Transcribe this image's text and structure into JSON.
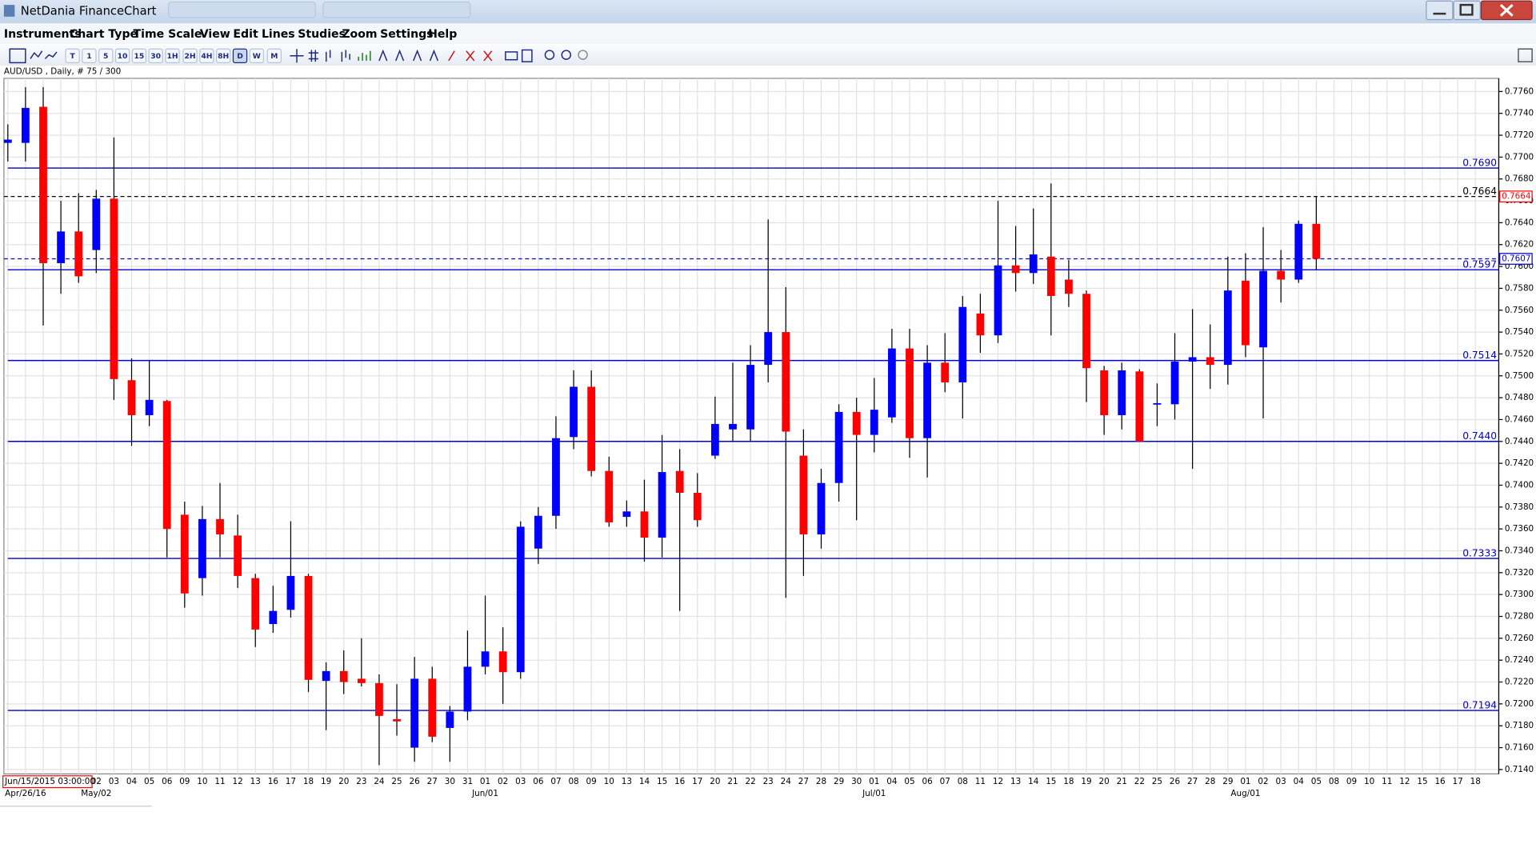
{
  "window": {
    "title": "NetDania FinanceChart"
  },
  "menu": [
    "Instruments",
    "Chart Type",
    "Time Scale",
    "View",
    "Edit",
    "Lines",
    "Studies",
    "Zoom",
    "Settings",
    "Help"
  ],
  "toolbar": [
    "T",
    "1",
    "5",
    "10",
    "15",
    "30",
    "1H",
    "2H",
    "4H",
    "8H",
    "D",
    "W",
    "M"
  ],
  "chart_data": {
    "type": "candlestick",
    "title": "AUD/USD , Daily, # 75 / 300",
    "cursor_label": "Jun/15/2015 03:00:00",
    "up_color": "#0000ff",
    "down_color": "#ff0000",
    "grid": true,
    "categories": [
      null,
      null,
      null,
      null,
      null,
      "02",
      "03",
      "04",
      "05",
      "06",
      "09",
      "10",
      "11",
      "12",
      "13",
      "16",
      "17",
      "18",
      "19",
      "20",
      "23",
      "24",
      "25",
      "26",
      "27",
      "30",
      "31",
      "01",
      "02",
      "03",
      "06",
      "07",
      "08",
      "09",
      "10",
      "13",
      "14",
      "15",
      "16",
      "17",
      "20",
      "21",
      "22",
      "23",
      "24",
      "27",
      "28",
      "29",
      "30",
      "01",
      "04",
      "05",
      "06",
      "07",
      "08",
      "11",
      "12",
      "13",
      "14",
      "15",
      "18",
      "19",
      "20",
      "21",
      "22",
      "25",
      "26",
      "27",
      "28",
      "29",
      "01",
      "02",
      "03",
      "04",
      "05",
      "08",
      "09",
      "10",
      "11",
      "12",
      "15",
      "16",
      "17",
      "18"
    ],
    "period_labels": [
      null,
      "Apr/26/16",
      null,
      null,
      null,
      "May/02",
      null,
      null,
      null,
      null,
      null,
      null,
      null,
      null,
      null,
      null,
      null,
      null,
      null,
      null,
      null,
      null,
      null,
      null,
      null,
      null,
      null,
      "Jun/01",
      null,
      null,
      null,
      null,
      null,
      null,
      null,
      null,
      null,
      null,
      null,
      null,
      null,
      null,
      null,
      null,
      null,
      null,
      null,
      null,
      null,
      "Jul/01",
      null,
      null,
      null,
      null,
      null,
      null,
      null,
      null,
      null,
      null,
      null,
      null,
      null,
      null,
      null,
      null,
      null,
      null,
      null,
      null,
      "Aug/01",
      null,
      null,
      null,
      null,
      null,
      null,
      null,
      null,
      null,
      null,
      null,
      null,
      null
    ],
    "open": [
      0.7713,
      0.7713,
      0.7746,
      0.7603,
      0.7632,
      0.7615,
      0.7662,
      0.7496,
      0.7464,
      0.7477,
      0.7373,
      0.7315,
      0.7369,
      0.7354,
      0.7315,
      0.7273,
      0.7286,
      0.7317,
      0.7221,
      0.723,
      0.7223,
      0.7219,
      0.7186,
      0.716,
      0.7223,
      0.7178,
      0.7193,
      0.7234,
      0.7248,
      0.7229,
      0.7342,
      0.7372,
      0.7444,
      0.749,
      0.7413,
      0.7371,
      0.7376,
      0.7352,
      0.7413,
      0.7393,
      0.7427,
      0.7451,
      0.7451,
      0.751,
      0.754,
      0.7427,
      0.7355,
      0.7402,
      0.7467,
      0.7446,
      0.7462,
      0.7525,
      0.7443,
      0.7512,
      0.7494,
      0.7557,
      0.7537,
      0.7601,
      0.7594,
      0.7609,
      0.7588,
      0.7575,
      0.7505,
      0.7464,
      0.7504,
      0.7474,
      0.7474,
      0.7513,
      0.7517,
      0.751,
      0.7587,
      0.7526,
      0.7596,
      0.7588,
      0.7639,
      null,
      null,
      null,
      null,
      null,
      null,
      null,
      null,
      null
    ],
    "high": [
      0.773,
      0.7764,
      0.7764,
      0.766,
      0.7667,
      0.767,
      0.7718,
      0.7516,
      0.7514,
      0.7478,
      0.7385,
      0.7381,
      0.7402,
      0.7373,
      0.7319,
      0.7308,
      0.7367,
      0.7319,
      0.7238,
      0.7249,
      0.726,
      0.7227,
      0.7218,
      0.7243,
      0.7234,
      0.7198,
      0.7267,
      0.7299,
      0.727,
      0.7367,
      0.738,
      0.7463,
      0.7505,
      0.7505,
      0.7426,
      0.7386,
      0.7405,
      0.7446,
      0.7433,
      0.7411,
      0.7481,
      0.7512,
      0.7528,
      0.7643,
      0.7581,
      0.7451,
      0.7415,
      0.7474,
      0.748,
      0.7498,
      0.7543,
      0.7543,
      0.7528,
      0.7539,
      0.7573,
      0.7575,
      0.766,
      0.7637,
      0.7653,
      0.7676,
      0.7606,
      0.7578,
      0.7509,
      0.7512,
      0.7506,
      0.7493,
      0.7539,
      0.7561,
      0.7547,
      0.7609,
      0.7612,
      0.7636,
      0.7615,
      0.7642,
      0.7664,
      null,
      null,
      null,
      null,
      null,
      null,
      null,
      null,
      null
    ],
    "low": [
      0.7696,
      0.7696,
      0.7546,
      0.7575,
      0.7585,
      0.7594,
      0.7478,
      0.7436,
      0.7454,
      0.7334,
      0.7288,
      0.7299,
      0.7334,
      0.7306,
      0.7252,
      0.7265,
      0.7279,
      0.7211,
      0.7176,
      0.7209,
      0.7216,
      0.7144,
      0.7171,
      0.7147,
      0.7165,
      0.7147,
      0.7185,
      0.7227,
      0.72,
      0.7223,
      0.7328,
      0.736,
      0.7433,
      0.7408,
      0.7362,
      0.7362,
      0.733,
      0.7334,
      0.7285,
      0.7362,
      0.7424,
      0.744,
      0.744,
      0.7494,
      0.7297,
      0.7317,
      0.7342,
      0.7385,
      0.7368,
      0.743,
      0.7457,
      0.7425,
      0.7407,
      0.7485,
      0.7461,
      0.7521,
      0.753,
      0.7577,
      0.7584,
      0.7537,
      0.7563,
      0.7476,
      0.7446,
      0.7451,
      0.744,
      0.7454,
      0.746,
      0.7415,
      0.7488,
      0.7492,
      0.7517,
      0.7461,
      0.7567,
      0.7585,
      0.7597,
      null,
      null,
      null,
      null,
      null,
      null,
      null,
      null,
      null
    ],
    "close": [
      0.7716,
      0.7745,
      0.7603,
      0.7632,
      0.7591,
      0.7662,
      0.7497,
      0.7464,
      0.7478,
      0.736,
      0.7301,
      0.7369,
      0.7355,
      0.7317,
      0.7268,
      0.7285,
      0.7317,
      0.7222,
      0.723,
      0.722,
      0.7219,
      0.7189,
      0.7184,
      0.7223,
      0.717,
      0.7193,
      0.7234,
      0.7248,
      0.7229,
      0.7362,
      0.7372,
      0.7443,
      0.749,
      0.7413,
      0.7366,
      0.7376,
      0.7352,
      0.7412,
      0.7393,
      0.7368,
      0.7456,
      0.7456,
      0.751,
      0.754,
      0.7449,
      0.7355,
      0.7402,
      0.7467,
      0.7446,
      0.7469,
      0.7525,
      0.7443,
      0.7512,
      0.7494,
      0.7563,
      0.7537,
      0.7601,
      0.7594,
      0.7611,
      0.7573,
      0.7575,
      0.7507,
      0.7464,
      0.7505,
      0.744,
      0.7475,
      0.7513,
      0.7517,
      0.751,
      0.7578,
      0.7528,
      0.7596,
      0.7588,
      0.7639,
      0.7607,
      null,
      null,
      null,
      null,
      null,
      null,
      null,
      null,
      null
    ],
    "ylim": [
      0.7136,
      0.7772
    ],
    "yticks": [
      {
        "value": 0.714,
        "label": "0.7140"
      },
      {
        "value": 0.716,
        "label": "0.7160"
      },
      {
        "value": 0.718,
        "label": "0.7180"
      },
      {
        "value": 0.72,
        "label": "0.7200"
      },
      {
        "value": 0.722,
        "label": "0.7220"
      },
      {
        "value": 0.724,
        "label": "0.7240"
      },
      {
        "value": 0.726,
        "label": "0.7260"
      },
      {
        "value": 0.728,
        "label": "0.7280"
      },
      {
        "value": 0.73,
        "label": "0.7300"
      },
      {
        "value": 0.732,
        "label": "0.7320"
      },
      {
        "value": 0.734,
        "label": "0.7340"
      },
      {
        "value": 0.736,
        "label": "0.7360"
      },
      {
        "value": 0.738,
        "label": "0.7380"
      },
      {
        "value": 0.74,
        "label": "0.7400"
      },
      {
        "value": 0.742,
        "label": "0.7420"
      },
      {
        "value": 0.744,
        "label": "0.7440"
      },
      {
        "value": 0.746,
        "label": "0.7460"
      },
      {
        "value": 0.748,
        "label": "0.7480"
      },
      {
        "value": 0.75,
        "label": "0.7500"
      },
      {
        "value": 0.752,
        "label": "0.7520"
      },
      {
        "value": 0.754,
        "label": "0.7540"
      },
      {
        "value": 0.756,
        "label": "0.7560"
      },
      {
        "value": 0.758,
        "label": "0.7580"
      },
      {
        "value": 0.76,
        "label": "0.7600"
      },
      {
        "value": 0.762,
        "label": "0.7620"
      },
      {
        "value": 0.764,
        "label": "0.7640"
      },
      {
        "value": 0.766,
        "label": "0.7660"
      },
      {
        "value": 0.768,
        "label": "0.7680"
      },
      {
        "value": 0.77,
        "label": "0.7700"
      },
      {
        "value": 0.772,
        "label": "0.7720"
      },
      {
        "value": 0.774,
        "label": "0.7740"
      },
      {
        "value": 0.776,
        "label": "0.7760"
      }
    ],
    "levels": [
      {
        "value": 0.769,
        "label": "0.7690"
      },
      {
        "value": 0.7597,
        "label": "0.7597"
      },
      {
        "value": 0.7514,
        "label": "0.7514"
      },
      {
        "value": 0.744,
        "label": "0.7440"
      },
      {
        "value": 0.7333,
        "label": "0.7333"
      },
      {
        "value": 0.7194,
        "label": "0.7194"
      }
    ],
    "level_color": "#0000cc",
    "price_lines": [
      {
        "value": 0.7664,
        "label": "0.7664",
        "color": "#000000",
        "box_color": "#ff0000"
      },
      {
        "value": 0.7607,
        "label": "0.7607",
        "color": "#0000cc",
        "box_color": "#0000cc"
      }
    ]
  }
}
